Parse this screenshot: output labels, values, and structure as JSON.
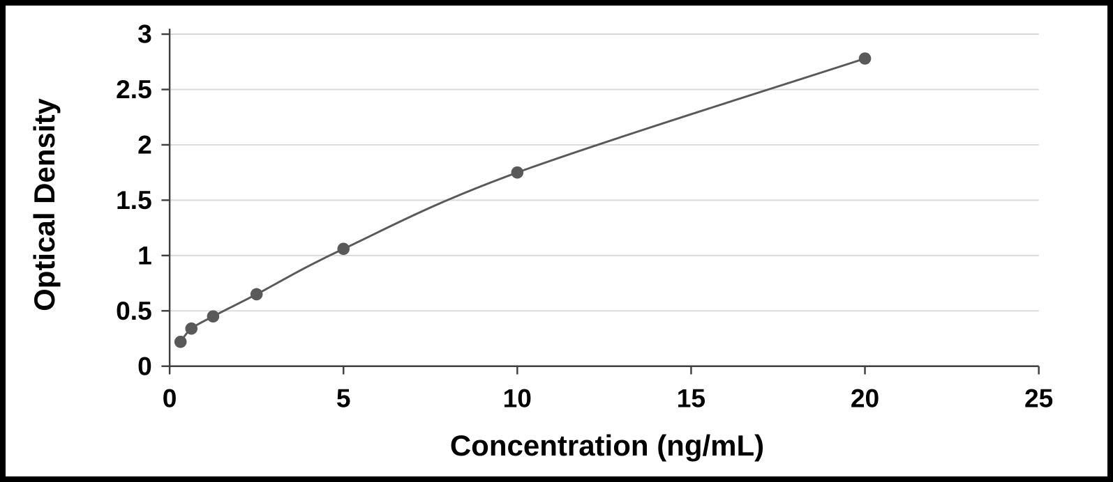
{
  "chart_data": {
    "type": "line",
    "title": "",
    "xlabel": "Concentration (ng/mL)",
    "ylabel": "Optical Density",
    "x": [
      0.313,
      0.625,
      1.25,
      2.5,
      5,
      10,
      20
    ],
    "y": [
      0.22,
      0.34,
      0.45,
      0.65,
      1.06,
      1.75,
      2.78
    ],
    "xlim": [
      0,
      25
    ],
    "ylim": [
      0,
      3
    ],
    "x_ticks": [
      0,
      5,
      10,
      15,
      20,
      25
    ],
    "y_ticks": [
      0,
      0.5,
      1,
      1.5,
      2,
      2.5,
      3
    ],
    "grid": "horizontal",
    "legend": "none",
    "colors": {
      "line": "#595959",
      "marker": "#595959",
      "grid": "#d9d9d9",
      "axis": "#3f3f3f",
      "text": "#000000",
      "background": "#ffffff",
      "frame": "#000000"
    }
  }
}
